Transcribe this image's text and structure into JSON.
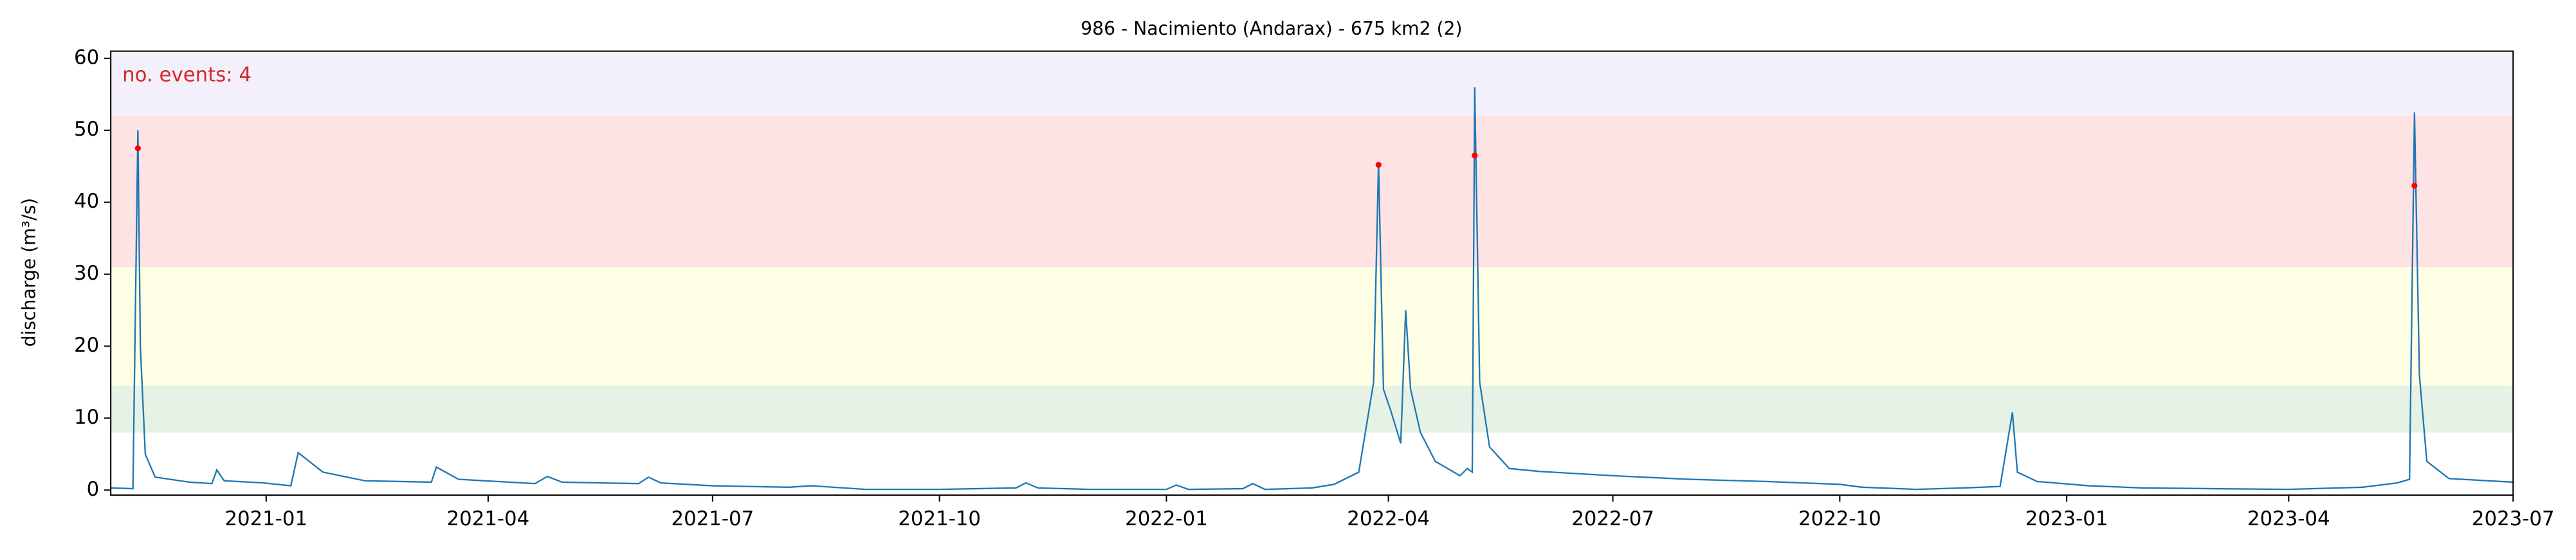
{
  "chart_data": {
    "type": "line",
    "title": "986 - Nacimiento (Andarax) - 675 km2 (2)",
    "y_label": "discharge (m³/s)",
    "annotation": "no. events: 4",
    "annotation_color": "#d62728",
    "xlim": [
      "2020-10-30",
      "2023-07-01"
    ],
    "ylim": [
      -0.7,
      61
    ],
    "xticks": [
      {
        "value": "2021-01-01",
        "label": "2021-01"
      },
      {
        "value": "2021-04-01",
        "label": "2021-04"
      },
      {
        "value": "2021-07-01",
        "label": "2021-07"
      },
      {
        "value": "2021-10-01",
        "label": "2021-10"
      },
      {
        "value": "2022-01-01",
        "label": "2022-01"
      },
      {
        "value": "2022-04-01",
        "label": "2022-04"
      },
      {
        "value": "2022-07-01",
        "label": "2022-07"
      },
      {
        "value": "2022-10-01",
        "label": "2022-10"
      },
      {
        "value": "2023-01-01",
        "label": "2023-01"
      },
      {
        "value": "2023-04-01",
        "label": "2023-04"
      },
      {
        "value": "2023-07-01",
        "label": "2023-07"
      }
    ],
    "yticks": [
      0,
      10,
      20,
      30,
      40,
      50,
      60
    ],
    "bands": [
      {
        "from": 8,
        "to": 14.5,
        "color": "#e5f2e5"
      },
      {
        "from": 14.5,
        "to": 31,
        "color": "#fefee5"
      },
      {
        "from": 31,
        "to": 52,
        "color": "#fee3e5"
      },
      {
        "from": 52,
        "to": 61,
        "color": "#f3f0fb"
      }
    ],
    "series": [
      {
        "color": "#1f77b4",
        "x": [
          "2020-10-30",
          "2020-11-08",
          "2020-11-10",
          "2020-11-11",
          "2020-11-13",
          "2020-11-17",
          "2020-12-01",
          "2020-12-10",
          "2020-12-12",
          "2020-12-15",
          "2020-12-31",
          "2021-01-11",
          "2021-01-14",
          "2021-01-24",
          "2021-02-10",
          "2021-03-09",
          "2021-03-11",
          "2021-03-20",
          "2021-04-20",
          "2021-04-25",
          "2021-05-01",
          "2021-06-01",
          "2021-06-05",
          "2021-06-10",
          "2021-07-01",
          "2021-08-01",
          "2021-08-10",
          "2021-09-01",
          "2021-10-01",
          "2021-11-01",
          "2021-11-05",
          "2021-11-10",
          "2021-12-01",
          "2022-01-01",
          "2022-01-05",
          "2022-01-10",
          "2022-02-01",
          "2022-02-05",
          "2022-02-10",
          "2022-03-01",
          "2022-03-10",
          "2022-03-20",
          "2022-03-26",
          "2022-03-28",
          "2022-03-30",
          "2022-04-02",
          "2022-04-06",
          "2022-04-08",
          "2022-04-10",
          "2022-04-14",
          "2022-04-20",
          "2022-04-30",
          "2022-05-03",
          "2022-05-05",
          "2022-05-06",
          "2022-05-08",
          "2022-05-12",
          "2022-05-20",
          "2022-06-01",
          "2022-07-01",
          "2022-08-01",
          "2022-09-01",
          "2022-10-01",
          "2022-10-10",
          "2022-11-01",
          "2022-11-20",
          "2022-12-05",
          "2022-12-10",
          "2022-12-12",
          "2022-12-20",
          "2023-01-10",
          "2023-02-01",
          "2023-03-01",
          "2023-04-01",
          "2023-05-01",
          "2023-05-15",
          "2023-05-20",
          "2023-05-22",
          "2023-05-24",
          "2023-05-27",
          "2023-06-05",
          "2023-07-01"
        ],
        "values": [
          0.3,
          0.2,
          50,
          20,
          5,
          1.8,
          1.1,
          0.9,
          2.8,
          1.3,
          1.0,
          0.6,
          5.2,
          2.5,
          1.3,
          1.1,
          3.2,
          1.5,
          0.9,
          1.9,
          1.1,
          0.9,
          1.8,
          1.0,
          0.6,
          0.4,
          0.6,
          0.1,
          0.1,
          0.3,
          1.0,
          0.3,
          0.1,
          0.1,
          0.7,
          0.1,
          0.2,
          0.9,
          0.1,
          0.3,
          0.8,
          2.5,
          15,
          45.5,
          14,
          11,
          6.5,
          25,
          14,
          8,
          4,
          2,
          3,
          2.5,
          56,
          15,
          6,
          3,
          2.6,
          2.0,
          1.5,
          1.2,
          0.8,
          0.4,
          0.1,
          0.3,
          0.5,
          10.8,
          2.5,
          1.2,
          0.6,
          0.3,
          0.2,
          0.1,
          0.4,
          1.0,
          1.5,
          52.5,
          16,
          4,
          1.6,
          1.1
        ]
      }
    ],
    "events": {
      "color": "#ff0000",
      "x": [
        "2020-11-10",
        "2022-03-28",
        "2022-05-06",
        "2023-05-22"
      ],
      "values": [
        47.5,
        45.2,
        46.5,
        42.3
      ]
    }
  }
}
